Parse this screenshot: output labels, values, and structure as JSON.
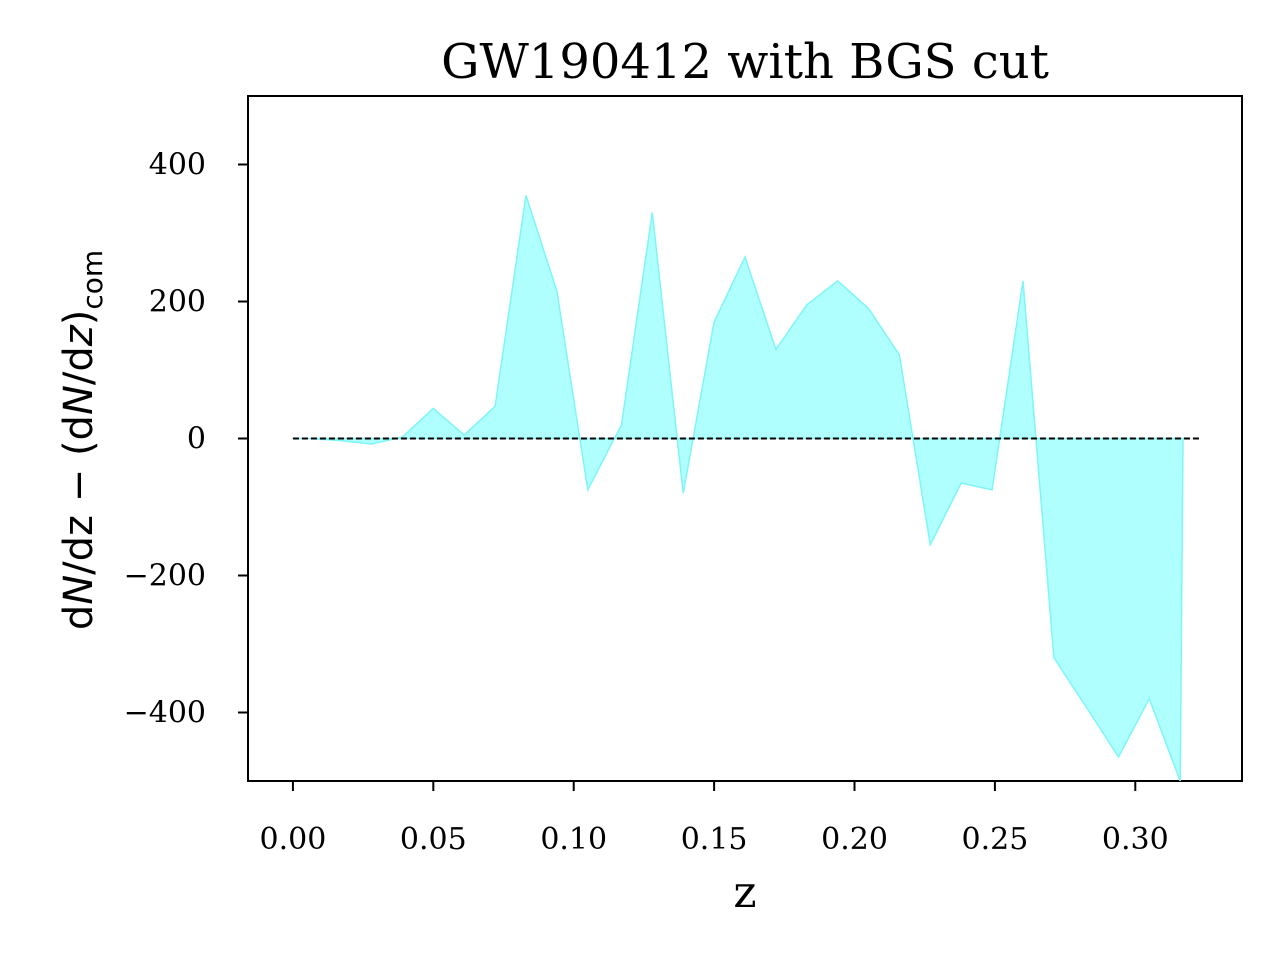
{
  "chart_data": {
    "type": "area",
    "title": "GW190412 with BGS cut",
    "xlabel": "z",
    "ylabel": {
      "prefix": "d",
      "N1": "N",
      "mid1": "/dz − (d",
      "N2": "N",
      "mid2": "/d",
      "z": "z",
      "suffix": ")",
      "sub": "com"
    },
    "xlim": [
      -0.016,
      0.338
    ],
    "ylim": [
      -500,
      500
    ],
    "xticks": [
      0.0,
      0.05,
      0.1,
      0.15,
      0.2,
      0.25,
      0.3
    ],
    "xtick_labels": [
      "0.00",
      "0.05",
      "0.10",
      "0.15",
      "0.20",
      "0.25",
      "0.30"
    ],
    "yticks": [
      400,
      200,
      0,
      -200,
      -400
    ],
    "ytick_labels": [
      "400",
      "200",
      "0",
      "−200",
      "−400"
    ],
    "fill_color": "#b0ffff",
    "edge_color": "#7ff5f5",
    "baseline": {
      "y": 0,
      "x_range": [
        0.0,
        0.323
      ],
      "style": "dashed",
      "color": "#000000"
    },
    "series": [
      {
        "x": [
          0.0,
          0.006,
          0.017,
          0.028,
          0.039,
          0.05,
          0.061,
          0.072,
          0.083,
          0.094,
          0.105,
          0.117,
          0.128,
          0.139,
          0.15,
          0.161,
          0.172,
          0.183,
          0.194,
          0.205,
          0.216,
          0.227,
          0.238,
          0.249,
          0.26,
          0.271,
          0.283,
          0.294,
          0.305,
          0.316,
          0.317
        ],
        "values": [
          0,
          0,
          -3,
          -8,
          2,
          44,
          5,
          47,
          355,
          215,
          -75,
          20,
          330,
          -80,
          170,
          265,
          130,
          195,
          230,
          190,
          122,
          -155,
          -65,
          -75,
          230,
          -320,
          -395,
          -465,
          -380,
          -500,
          0
        ]
      }
    ]
  }
}
